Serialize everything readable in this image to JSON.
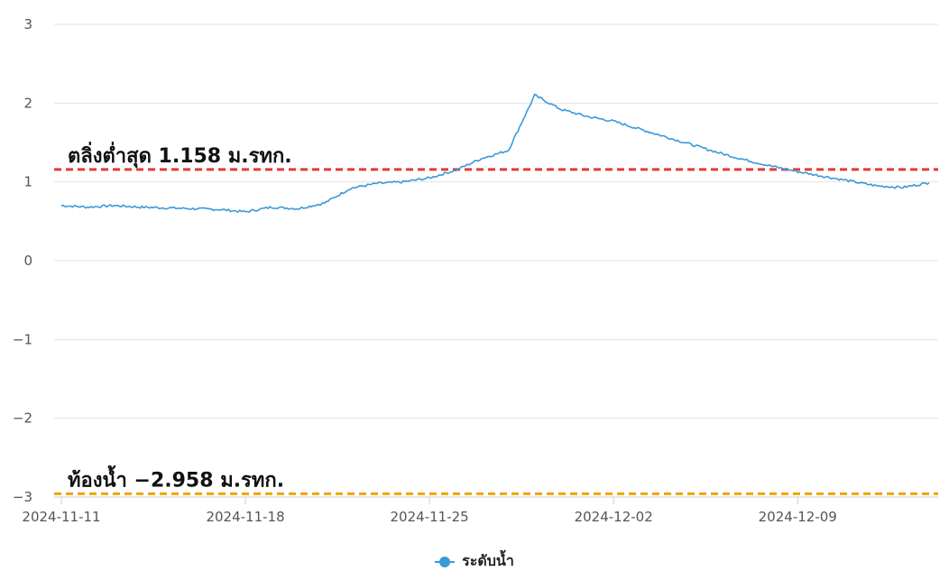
{
  "chart_data": {
    "type": "line",
    "ylim": [
      -3,
      3
    ],
    "yticks": [
      "3",
      "2",
      "1",
      "0",
      "−1",
      "−2",
      "−3"
    ],
    "xticks": [
      "2024-11-11",
      "2024-11-18",
      "2024-11-25",
      "2024-12-02",
      "2024-12-09"
    ],
    "legend": {
      "position": "bottom-center"
    },
    "grid": "horizontal",
    "colors": {
      "series": "#3a9ad9",
      "min_level": "#e53935",
      "bottom": "#f0a500"
    },
    "reference_lines": [
      {
        "label": "ตลิ่งต่ำสุด 1.158 ม.รทก.",
        "value": 1.158,
        "color": "#e53935"
      },
      {
        "label": "ท้องน้ำ −2.958 ม.รทก.",
        "value": -2.958,
        "color": "#f0a500"
      }
    ],
    "series": [
      {
        "name": "ระดับน้ำ",
        "points": [
          [
            "2024-11-11",
            0.7
          ],
          [
            "2024-11-12",
            0.68
          ],
          [
            "2024-11-13",
            0.7
          ],
          [
            "2024-11-14",
            0.68
          ],
          [
            "2024-11-15",
            0.67
          ],
          [
            "2024-11-16",
            0.66
          ],
          [
            "2024-11-17",
            0.65
          ],
          [
            "2024-11-18",
            0.62
          ],
          [
            "2024-11-19",
            0.68
          ],
          [
            "2024-11-20",
            0.66
          ],
          [
            "2024-11-21",
            0.73
          ],
          [
            "2024-11-22",
            0.92
          ],
          [
            "2024-11-23",
            0.98
          ],
          [
            "2024-11-24",
            1.0
          ],
          [
            "2024-11-25",
            1.05
          ],
          [
            "2024-11-26",
            1.15
          ],
          [
            "2024-11-27",
            1.3
          ],
          [
            "2024-11-28",
            1.4
          ],
          [
            "2024-11-29",
            2.1
          ],
          [
            "2024-11-30",
            1.92
          ],
          [
            "2024-12-01",
            1.83
          ],
          [
            "2024-12-02",
            1.77
          ],
          [
            "2024-12-03",
            1.67
          ],
          [
            "2024-12-04",
            1.57
          ],
          [
            "2024-12-05",
            1.47
          ],
          [
            "2024-12-06",
            1.37
          ],
          [
            "2024-12-07",
            1.28
          ],
          [
            "2024-12-08",
            1.2
          ],
          [
            "2024-12-09",
            1.13
          ],
          [
            "2024-12-10",
            1.07
          ],
          [
            "2024-12-11",
            1.01
          ],
          [
            "2024-12-12",
            0.95
          ],
          [
            "2024-12-13",
            0.93
          ],
          [
            "2024-12-14",
            0.99
          ]
        ]
      }
    ]
  }
}
